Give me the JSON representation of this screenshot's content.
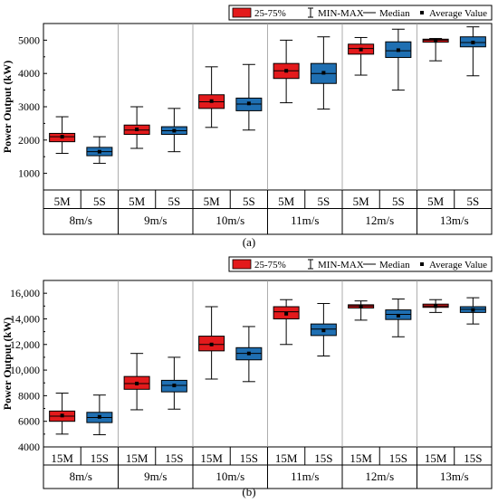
{
  "colors": {
    "M": "#e31a1c",
    "S": "#1f6fb2",
    "grid": "#9a9a9a"
  },
  "chart_data": [
    {
      "type": "box",
      "panel_label": "(a)",
      "ylabel": "Power Output (kW)",
      "ylim": [
        500,
        5500
      ],
      "yticks": [
        1000,
        2000,
        3000,
        4000,
        5000
      ],
      "ytick_labels": [
        "1000",
        "2000",
        "3000",
        "4000",
        "5000"
      ],
      "legend": {
        "box": "25-75%",
        "range": "MIN-MAX",
        "median": "Median",
        "mean": "Average Value"
      },
      "groups": [
        "8m/s",
        "9m/s",
        "10m/s",
        "11m/s",
        "12m/s",
        "13m/s"
      ],
      "series_labels": [
        "5M",
        "5S"
      ],
      "boxes": [
        [
          {
            "min": 1600,
            "q1": 1950,
            "median": 2100,
            "q3": 2200,
            "max": 2700,
            "mean": 2100
          },
          {
            "min": 1300,
            "q1": 1530,
            "median": 1650,
            "q3": 1780,
            "max": 2100,
            "mean": 1650
          }
        ],
        [
          {
            "min": 1750,
            "q1": 2170,
            "median": 2300,
            "q3": 2450,
            "max": 3000,
            "mean": 2320
          },
          {
            "min": 1650,
            "q1": 2170,
            "median": 2280,
            "q3": 2400,
            "max": 2950,
            "mean": 2280
          }
        ],
        [
          {
            "min": 2380,
            "q1": 2950,
            "median": 3150,
            "q3": 3360,
            "max": 4200,
            "mean": 3170
          },
          {
            "min": 2300,
            "q1": 2880,
            "median": 3080,
            "q3": 3260,
            "max": 4270,
            "mean": 3100
          }
        ],
        [
          {
            "min": 3120,
            "q1": 3850,
            "median": 4080,
            "q3": 4300,
            "max": 5000,
            "mean": 4080
          },
          {
            "min": 2930,
            "q1": 3700,
            "median": 4000,
            "q3": 4300,
            "max": 5100,
            "mean": 4020
          }
        ],
        [
          {
            "min": 3950,
            "q1": 4580,
            "median": 4750,
            "q3": 4880,
            "max": 5080,
            "mean": 4720
          },
          {
            "min": 3500,
            "q1": 4480,
            "median": 4680,
            "q3": 4950,
            "max": 5330,
            "mean": 4700
          }
        ],
        [
          {
            "min": 4380,
            "q1": 4940,
            "median": 5000,
            "q3": 5030,
            "max": 5050,
            "mean": 4980
          },
          {
            "min": 3930,
            "q1": 4800,
            "median": 4930,
            "q3": 5100,
            "max": 5400,
            "mean": 4930
          }
        ]
      ]
    },
    {
      "type": "box",
      "panel_label": "(b)",
      "ylabel": "Power Output (kW)",
      "ylim": [
        4000,
        17000
      ],
      "yticks": [
        4000,
        6000,
        8000,
        10000,
        12000,
        14000,
        16000
      ],
      "ytick_labels": [
        "4000",
        "6000",
        "8000",
        "10,000",
        "12,000",
        "14,000",
        "16,000"
      ],
      "legend": {
        "box": "25-75%",
        "range": "MIN-MAX",
        "median": "Median",
        "mean": "Average Value"
      },
      "groups": [
        "8m/s",
        "9m/s",
        "10m/s",
        "11m/s",
        "12m/s",
        "13m/s"
      ],
      "series_labels": [
        "15M",
        "15S"
      ],
      "boxes": [
        [
          {
            "min": 5000,
            "q1": 6000,
            "median": 6400,
            "q3": 6800,
            "max": 8200,
            "mean": 6450
          },
          {
            "min": 4950,
            "q1": 5900,
            "median": 6300,
            "q3": 6700,
            "max": 8050,
            "mean": 6350
          }
        ],
        [
          {
            "min": 6900,
            "q1": 8500,
            "median": 8950,
            "q3": 9500,
            "max": 11300,
            "mean": 8950
          },
          {
            "min": 6950,
            "q1": 8300,
            "median": 8800,
            "q3": 9200,
            "max": 11000,
            "mean": 8800
          }
        ],
        [
          {
            "min": 9300,
            "q1": 11500,
            "median": 12000,
            "q3": 12650,
            "max": 14950,
            "mean": 12000
          },
          {
            "min": 9100,
            "q1": 10800,
            "median": 11300,
            "q3": 11750,
            "max": 13400,
            "mean": 11300
          }
        ],
        [
          {
            "min": 12000,
            "q1": 14000,
            "median": 14550,
            "q3": 14950,
            "max": 15500,
            "mean": 14400
          },
          {
            "min": 11100,
            "q1": 12700,
            "median": 13200,
            "q3": 13600,
            "max": 15200,
            "mean": 13100
          }
        ],
        [
          {
            "min": 13900,
            "q1": 14850,
            "median": 15000,
            "q3": 15100,
            "max": 15400,
            "mean": 14950
          },
          {
            "min": 12600,
            "q1": 13950,
            "median": 14350,
            "q3": 14700,
            "max": 15550,
            "mean": 14250
          }
        ],
        [
          {
            "min": 14500,
            "q1": 14900,
            "median": 15000,
            "q3": 15150,
            "max": 15500,
            "mean": 15000
          },
          {
            "min": 13600,
            "q1": 14500,
            "median": 14750,
            "q3": 14950,
            "max": 15650,
            "mean": 14700
          }
        ]
      ]
    }
  ]
}
